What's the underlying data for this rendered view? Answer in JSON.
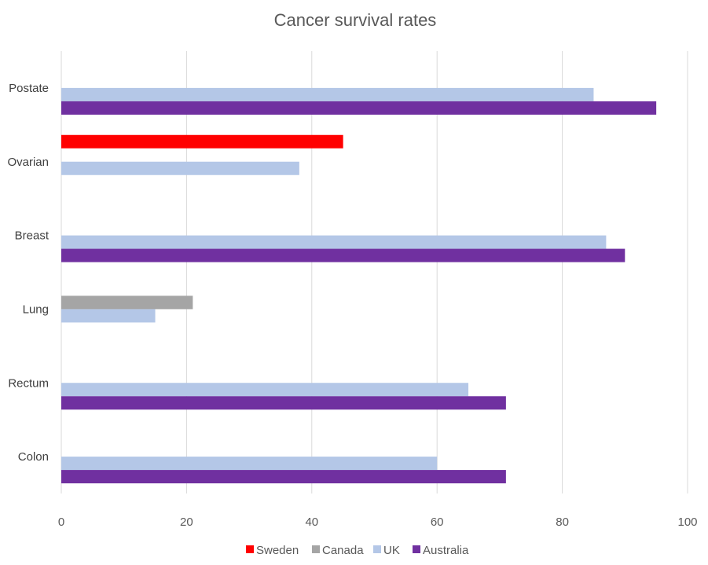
{
  "chart_data": {
    "type": "bar",
    "orientation": "horizontal",
    "title": "Cancer survival rates",
    "xlabel": "",
    "ylabel": "",
    "categories": [
      "Colon",
      "Rectum",
      "Lung",
      "Breast",
      "Ovarian",
      "Postate"
    ],
    "series": [
      {
        "name": "Sweden",
        "color": "#ff0000",
        "values": [
          null,
          null,
          null,
          null,
          45,
          null
        ]
      },
      {
        "name": "Canada",
        "color": "#a5a5a5",
        "values": [
          null,
          null,
          21,
          null,
          null,
          null
        ]
      },
      {
        "name": "UK",
        "color": "#b4c7e7",
        "values": [
          60,
          65,
          15,
          87,
          38,
          85
        ]
      },
      {
        "name": "Australia",
        "color": "#7030a0",
        "values": [
          71,
          71,
          null,
          90,
          null,
          95
        ]
      }
    ],
    "xlim": [
      0,
      100
    ],
    "xticks": [
      "0",
      "20",
      "40",
      "60",
      "80",
      "100"
    ],
    "grid": true,
    "legend_position": "bottom"
  }
}
